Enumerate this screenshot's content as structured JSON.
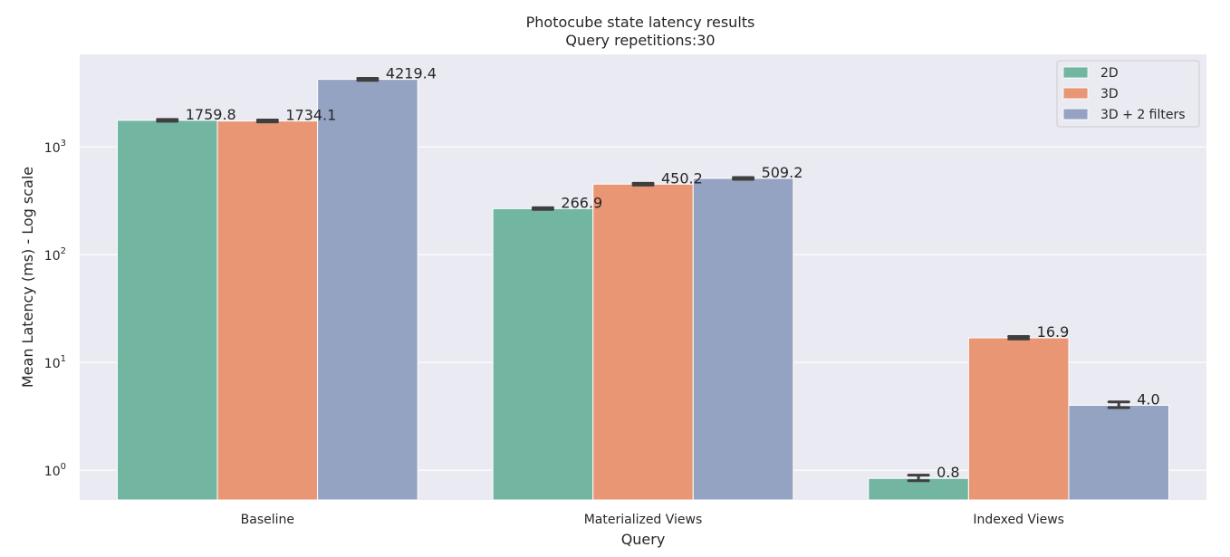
{
  "chart_data": {
    "type": "bar",
    "title": "Photocube state latency results",
    "subtitle": "Query repetitions:30",
    "xlabel": "Query",
    "ylabel": "Mean Latency (ms) - Log scale",
    "yscale": "log",
    "ylim": [
      0.53,
      7200
    ],
    "grid": true,
    "legend_position": "top-right",
    "categories": [
      "Baseline",
      "Materialized Views",
      "Indexed Views"
    ],
    "series": [
      {
        "name": "2D",
        "color": "#72b6a1",
        "values": [
          1759.8,
          266.9,
          0.84
        ],
        "labels": [
          "1759.8",
          "266.9",
          "0.8"
        ],
        "errors": [
          [
            1725,
            1795
          ],
          [
            262,
            272
          ],
          [
            0.8,
            0.9
          ]
        ]
      },
      {
        "name": "3D",
        "color": "#e99675",
        "values": [
          1734.1,
          450.2,
          16.9
        ],
        "labels": [
          "1734.1",
          "450.2",
          "16.9"
        ],
        "errors": [
          [
            1700,
            1770
          ],
          [
            441,
            459
          ],
          [
            16.5,
            17.4
          ]
        ]
      },
      {
        "name": "3D + 2 filters",
        "color": "#95a3c3",
        "values": [
          4219.4,
          509.2,
          4.0
        ],
        "labels": [
          "4219.4",
          "509.2",
          "4.0"
        ],
        "errors": [
          [
            4130,
            4310
          ],
          [
            499,
            519
          ],
          [
            3.8,
            4.3
          ]
        ]
      }
    ],
    "yticks": [
      {
        "value": 1,
        "base": "10",
        "exp": "0"
      },
      {
        "value": 10,
        "base": "10",
        "exp": "1"
      },
      {
        "value": 100,
        "base": "10",
        "exp": "2"
      },
      {
        "value": 1000,
        "base": "10",
        "exp": "3"
      }
    ]
  }
}
